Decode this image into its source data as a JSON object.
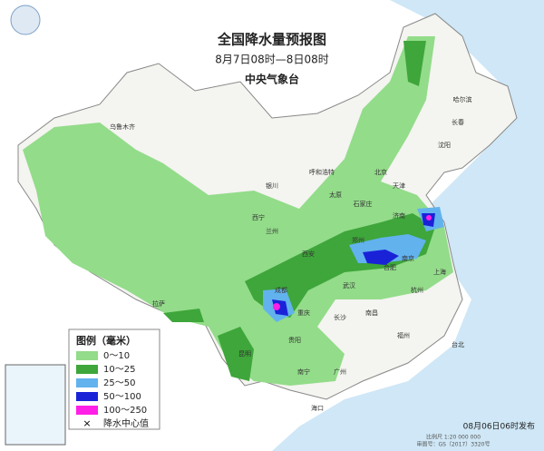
{
  "header": {
    "title": "全国降水量预报图",
    "subtitle": "8月7日08时—8日08时",
    "agency": "中央气象台"
  },
  "legend": {
    "title": "图例（毫米）",
    "items": [
      {
        "label": "0～10",
        "color": "#93dc8a"
      },
      {
        "label": "10～25",
        "color": "#3ea63a"
      },
      {
        "label": "25～50",
        "color": "#62b2ee"
      },
      {
        "label": "50～100",
        "color": "#1a22d8"
      },
      {
        "label": "100～250",
        "color": "#ff1fe6"
      },
      {
        "label": "降水中心值",
        "symbol": "×"
      }
    ]
  },
  "cities": [
    "哈尔滨",
    "长春",
    "沈阳",
    "乌鲁木齐",
    "呼和浩特",
    "北京",
    "天津",
    "石家庄",
    "太原",
    "济南",
    "银川",
    "西宁",
    "兰州",
    "郑州",
    "西安",
    "合肥",
    "南京",
    "上海",
    "成都",
    "武汉",
    "杭州",
    "拉萨",
    "重庆",
    "长沙",
    "南昌",
    "贵阳",
    "福州",
    "台北",
    "昆明",
    "南宁",
    "广州",
    "海口"
  ],
  "footer": {
    "issued": "08月06日06时发布",
    "scale": "比例尺 1:20 000 000",
    "approval": "审图号：GS（2017）3320号"
  }
}
